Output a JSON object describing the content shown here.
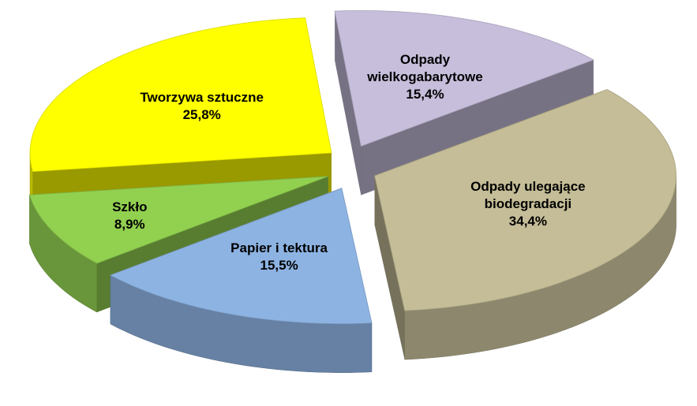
{
  "chart_data": {
    "type": "pie",
    "categories": [
      "Odpady wielkogabarytowe",
      "Odpady ulegające biodegradacji",
      "Papier i tektura",
      "Szkło",
      "Tworzywa sztuczne"
    ],
    "values": [
      15.4,
      34.4,
      15.5,
      8.9,
      25.8
    ],
    "value_labels": [
      "15,4%",
      "34,4%",
      "15,5%",
      "8,9%",
      "25,8%"
    ],
    "colors": [
      "#c7bedb",
      "#c4bd97",
      "#8db3e2",
      "#92d050",
      "#ffff00"
    ]
  }
}
